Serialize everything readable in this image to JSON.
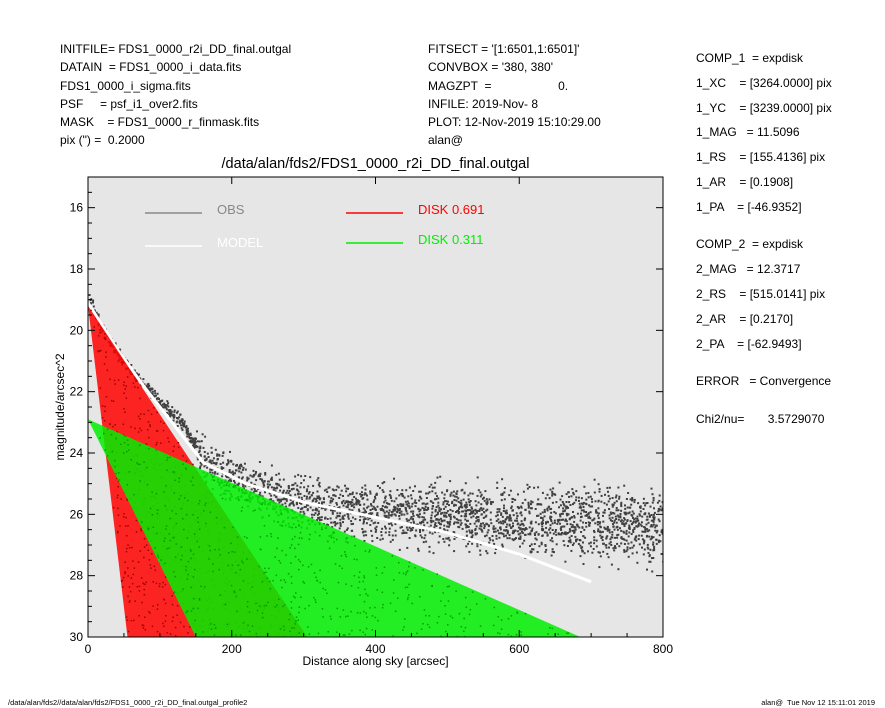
{
  "header_left": [
    "INITFILE= FDS1_0000_r2i_DD_final.outgal",
    "DATAIN  = FDS1_0000_i_data.fits",
    "FDS1_0000_i_sigma.fits",
    "PSF     = psf_i1_over2.fits",
    "MASK    = FDS1_0000_r_finmask.fits",
    "pix (\") =  0.2000"
  ],
  "header_mid": [
    "FITSECT = '[1:6501,1:6501]'",
    "CONVBOX = '380, 380'",
    "MAGZPT  =                    0.",
    "INFILE: 2019-Nov- 8",
    "PLOT: 12-Nov-2019 15:10:29.00",
    "alan@"
  ],
  "components": [
    {
      "text": "COMP_1  = expdisk",
      "gap_after": false
    },
    {
      "text": "1_XC    = [3264.0000] pix",
      "gap_after": false
    },
    {
      "text": "1_YC    = [3239.0000] pix",
      "gap_after": false
    },
    {
      "text": "1_MAG   = 11.5096",
      "gap_after": false
    },
    {
      "text": "1_RS    = [155.4136] pix",
      "gap_after": false
    },
    {
      "text": "1_AR    = [0.1908]",
      "gap_after": false
    },
    {
      "text": "1_PA    = [-46.9352]",
      "gap_after": true
    },
    {
      "text": "COMP_2  = expdisk",
      "gap_after": false
    },
    {
      "text": "2_MAG   = 12.3717",
      "gap_after": false
    },
    {
      "text": "2_RS    = [515.0141] pix",
      "gap_after": false
    },
    {
      "text": "2_AR    = [0.2170]",
      "gap_after": false
    },
    {
      "text": "2_PA    = [-62.9493]",
      "gap_after": true
    },
    {
      "text": "ERROR   = Convergence",
      "gap_after": true
    },
    {
      "text": "Chi2/nu=       3.5729070",
      "gap_after": false
    }
  ],
  "footer_left": "/data/alan/fds2//data/alan/fds2/FDS1_0000_r2i_DD_final.outgal_profile2",
  "footer_right": "alan@  Tue Nov 12 15:11:01 2019",
  "chart_data": {
    "type": "scatter",
    "title": "/data/alan/fds2/FDS1_0000_r2i_DD_final.outgal",
    "xlabel": "Distance along sky [arcsec]",
    "ylabel": "magnitude/arcsec^2",
    "xlim": [
      0,
      800
    ],
    "ylim": [
      30,
      15
    ],
    "y_inverted": true,
    "x_ticks": [
      0,
      200,
      400,
      600,
      800
    ],
    "y_ticks": [
      16,
      18,
      20,
      22,
      24,
      26,
      28,
      30
    ],
    "grid": false,
    "background_color": "#e6e6e6",
    "legend": [
      {
        "label": "OBS",
        "color": "#888888"
      },
      {
        "label": "DISK  0.691",
        "color": "#ff0000"
      },
      {
        "label": "MODEL",
        "color": "#ffffff"
      },
      {
        "label": "DISK  0.311",
        "color": "#00ee00"
      }
    ],
    "series": [
      {
        "name": "OBS",
        "color": "#404040",
        "ridge": [
          [
            2,
            18.9
          ],
          [
            10,
            19.5
          ],
          [
            30,
            20.4
          ],
          [
            60,
            21.3
          ],
          [
            100,
            22.3
          ],
          [
            130,
            23.0
          ],
          [
            160,
            24.2
          ],
          [
            200,
            24.8
          ],
          [
            250,
            25.3
          ],
          [
            300,
            25.6
          ],
          [
            350,
            25.8
          ],
          [
            400,
            25.9
          ],
          [
            500,
            26.0
          ],
          [
            600,
            26.2
          ],
          [
            800,
            26.4
          ]
        ],
        "scatter_mag": 0.6
      },
      {
        "name": "MODEL",
        "color": "#ffffff",
        "points": [
          [
            0,
            19.1
          ],
          [
            40,
            20.6
          ],
          [
            80,
            21.9
          ],
          [
            120,
            23.1
          ],
          [
            160,
            24.3
          ],
          [
            220,
            25.0
          ],
          [
            300,
            25.6
          ],
          [
            400,
            26.1
          ],
          [
            500,
            26.6
          ],
          [
            600,
            27.3
          ],
          [
            700,
            28.2
          ]
        ]
      },
      {
        "name": "DISK  0.691",
        "color": "#ff0000",
        "wedge": {
          "apex": [
            0,
            19.2
          ],
          "inner_end": [
            55,
            30
          ],
          "outer_end": [
            305,
            30
          ]
        }
      },
      {
        "name": "DISK  0.311",
        "color": "#00ee00",
        "wedge": {
          "apex": [
            0,
            22.9
          ],
          "inner_end": [
            150,
            30
          ],
          "outer_end": [
            685,
            30
          ]
        }
      }
    ]
  }
}
